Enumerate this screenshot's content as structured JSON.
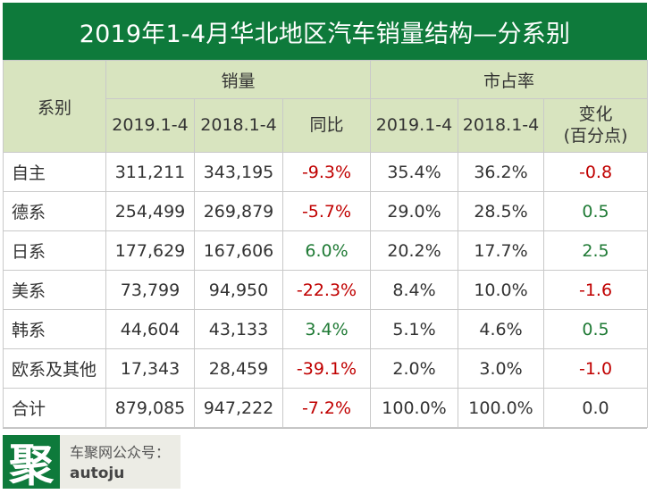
{
  "title": "2019年1-4月华北地区汽车销量结构—分系别",
  "chart_data": {
    "type": "table",
    "title": "2019年1-4月华北地区汽车销量结构—分系别",
    "group_headers": [
      "系别",
      "销量",
      "市占率"
    ],
    "columns": [
      "2019.1-4",
      "2018.1-4",
      "同比",
      "2019.1-4",
      "2018.1-4",
      "变化",
      "(百分点)"
    ],
    "rows": [
      {
        "name": "自主",
        "sales2019": "311,211",
        "sales2018": "343,195",
        "yoy": "-9.3%",
        "share2019": "35.4%",
        "share2018": "36.2%",
        "change": "-0.8"
      },
      {
        "name": "德系",
        "sales2019": "254,499",
        "sales2018": "269,879",
        "yoy": "-5.7%",
        "share2019": "29.0%",
        "share2018": "28.5%",
        "change": "0.5"
      },
      {
        "name": "日系",
        "sales2019": "177,629",
        "sales2018": "167,606",
        "yoy": "6.0%",
        "share2019": "20.2%",
        "share2018": "17.7%",
        "change": "2.5"
      },
      {
        "name": "美系",
        "sales2019": "73,799",
        "sales2018": "94,950",
        "yoy": "-22.3%",
        "share2019": "8.4%",
        "share2018": "10.0%",
        "change": "-1.6"
      },
      {
        "name": "韩系",
        "sales2019": "44,604",
        "sales2018": "43,133",
        "yoy": "3.4%",
        "share2019": "5.1%",
        "share2018": "4.6%",
        "change": "0.5"
      },
      {
        "name": "欧系及其他",
        "sales2019": "17,343",
        "sales2018": "28,459",
        "yoy": "-39.1%",
        "share2019": "2.0%",
        "share2018": "3.0%",
        "change": "-1.0"
      },
      {
        "name": "合计",
        "sales2019": "879,085",
        "sales2018": "947,222",
        "yoy": "-7.2%",
        "share2019": "100.0%",
        "share2018": "100.0%",
        "change": "0.0"
      }
    ]
  },
  "colors": {
    "header_green": "#0e7a3b",
    "subheader": "#d8e4bf",
    "negative": "#c00000",
    "positive": "#1f7a35"
  },
  "footer": {
    "logo_char": "聚",
    "line1": "车聚网公众号：",
    "line2": "autoju"
  }
}
